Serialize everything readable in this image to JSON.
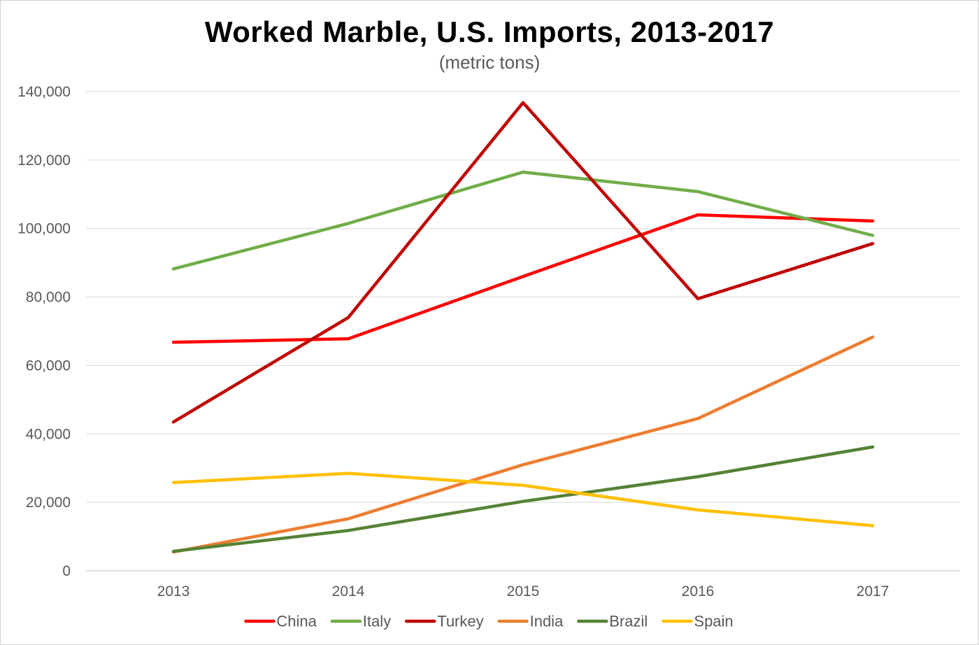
{
  "chart_data": {
    "type": "line",
    "title": "Worked Marble, U.S. Imports, 2013-2017",
    "subtitle": "(metric tons)",
    "xlabel": "",
    "ylabel": "",
    "categories": [
      "2013",
      "2014",
      "2015",
      "2016",
      "2017"
    ],
    "ylim": [
      0,
      140000
    ],
    "yticks": [
      0,
      20000,
      40000,
      60000,
      80000,
      100000,
      120000,
      140000
    ],
    "ytick_labels": [
      "0",
      "20,000",
      "40,000",
      "60,000",
      "80,000",
      "100,000",
      "120,000",
      "140,000"
    ],
    "grid": true,
    "legend_position": "bottom",
    "series": [
      {
        "name": "China",
        "color": "#ff0000",
        "values": [
          66800,
          67800,
          86000,
          104000,
          102200
        ]
      },
      {
        "name": "Italy",
        "color": "#70ad47",
        "values": [
          88200,
          101500,
          116500,
          110800,
          98000
        ]
      },
      {
        "name": "Turkey",
        "color": "#c00000",
        "values": [
          43500,
          74000,
          136800,
          79500,
          95600
        ]
      },
      {
        "name": "India",
        "color": "#ed7d31",
        "values": [
          5500,
          15200,
          31000,
          44500,
          68300
        ]
      },
      {
        "name": "Brazil",
        "color": "#548235",
        "values": [
          5700,
          11800,
          20300,
          27500,
          36200
        ]
      },
      {
        "name": "Spain",
        "color": "#ffc000",
        "values": [
          25800,
          28500,
          25000,
          17800,
          13200
        ]
      }
    ]
  }
}
